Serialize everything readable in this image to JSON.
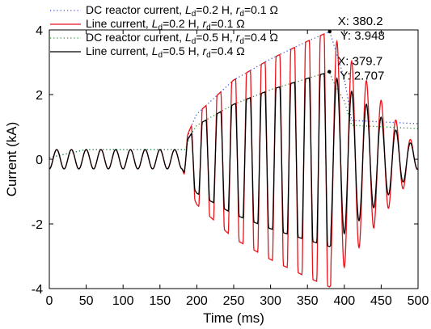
{
  "chart_data": {
    "type": "line",
    "xlabel": "Time (ms)",
    "ylabel": "Current (kA)",
    "xlim": [
      0,
      500
    ],
    "ylim": [
      -4,
      4
    ],
    "x_ticks": [
      0,
      50,
      100,
      150,
      200,
      250,
      300,
      350,
      400,
      450,
      500
    ],
    "y_ticks": [
      -4,
      -2,
      0,
      2,
      4
    ],
    "x_tick_labels": [
      "0",
      "50",
      "100",
      "150",
      "200",
      "250",
      "300",
      "350",
      "400",
      "450",
      "500"
    ],
    "y_tick_labels": [
      "-4",
      "-2",
      "0",
      "2",
      "4"
    ],
    "grid": false,
    "legend_position": "top-left",
    "series": [
      {
        "name": "DC reactor current, Ld=0.2 H, rd=0.1 Ω",
        "color": "#3b4fd8",
        "style": "dotted",
        "x": [
          0,
          50,
          100,
          150,
          185,
          190,
          200,
          250,
          300,
          350,
          380.2,
          385,
          400,
          410,
          500
        ],
        "y": [
          0.05,
          0.3,
          0.3,
          0.3,
          0.3,
          0.9,
          1.4,
          2.45,
          3.1,
          3.65,
          3.948,
          3.6,
          2.5,
          1.2,
          1.1
        ]
      },
      {
        "name": "Line current, Ld=0.2 H, rd=0.1 Ω",
        "color": "#e8141b",
        "style": "solid",
        "x": [
          0,
          50,
          100,
          150,
          180,
          190,
          200,
          250,
          300,
          350,
          380,
          500
        ],
        "y_envelope_max": [
          0.3,
          0.3,
          0.3,
          0.3,
          0.3,
          0.9,
          1.4,
          2.45,
          3.1,
          3.65,
          3.95,
          0.3
        ],
        "y_envelope_min": [
          -0.3,
          -0.3,
          -0.3,
          -0.3,
          -0.3,
          -0.9,
          -1.4,
          -2.45,
          -3.1,
          -3.65,
          -3.95,
          -0.3
        ]
      },
      {
        "name": "DC reactor current, Ld=0.5 H, rd=0.4 Ω",
        "color": "#1e8f2a",
        "style": "dotted",
        "x": [
          0,
          50,
          100,
          150,
          185,
          190,
          200,
          250,
          300,
          350,
          379.7,
          385,
          400,
          410,
          500
        ],
        "y": [
          0.05,
          0.3,
          0.3,
          0.3,
          0.3,
          0.7,
          1.05,
          1.7,
          2.15,
          2.5,
          2.707,
          2.4,
          1.8,
          1.05,
          0.95
        ]
      },
      {
        "name": "Line current, Ld=0.5 H, rd=0.4 Ω",
        "color": "#000000",
        "style": "solid",
        "x": [
          0,
          50,
          100,
          150,
          180,
          190,
          200,
          250,
          300,
          350,
          380,
          500
        ],
        "y_envelope_max": [
          0.3,
          0.3,
          0.3,
          0.3,
          0.3,
          0.7,
          1.05,
          1.7,
          2.15,
          2.5,
          2.7,
          0.3
        ],
        "y_envelope_min": [
          -0.3,
          -0.3,
          -0.3,
          -0.3,
          -0.3,
          -0.7,
          -1.05,
          -1.7,
          -2.15,
          -2.5,
          -2.7,
          -0.3
        ]
      }
    ],
    "fundamental_frequency_hz": 50,
    "annotations": [
      {
        "x_label": "X: 380.2",
        "y_label": "Y: 3.948",
        "x": 380.2,
        "y": 3.948
      },
      {
        "x_label": "X: 379.7",
        "y_label": "Y: 2.707",
        "x": 379.7,
        "y": 2.707
      }
    ]
  },
  "legend": {
    "entries": [
      {
        "prefix": "DC reactor current, ",
        "L": "L",
        "Lsub": "d",
        "Lval": "=0.2 H, ",
        "r": "r",
        "rsub": "d",
        "rval": "=0.1 Ω",
        "color": "#3b4fd8",
        "style": "dotted"
      },
      {
        "prefix": "Line current, ",
        "L": "L",
        "Lsub": "d",
        "Lval": "=0.2 H, ",
        "r": "r",
        "rsub": "d",
        "rval": "=0.1 Ω",
        "color": "#e8141b",
        "style": "solid"
      },
      {
        "prefix": "DC reactor current, ",
        "L": "L",
        "Lsub": "d",
        "Lval": "=0.5 H, ",
        "r": "r",
        "rsub": "d",
        "rval": "=0.4 Ω",
        "color": "#1e8f2a",
        "style": "dotted"
      },
      {
        "prefix": "Line current, ",
        "L": "L",
        "Lsub": "d",
        "Lval": "=0.5 H, ",
        "r": "r",
        "rsub": "d",
        "rval": "=0.4 Ω",
        "color": "#000000",
        "style": "solid"
      }
    ]
  }
}
